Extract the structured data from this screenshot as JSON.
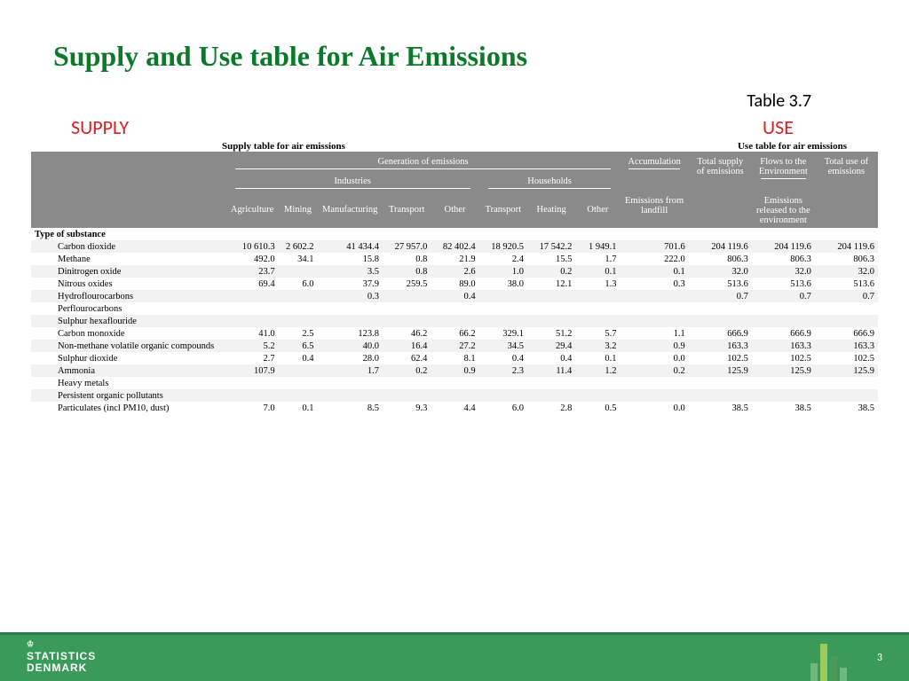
{
  "title": "Supply and Use table for Air Emissions",
  "table_label": "Table 3.7",
  "section_supply": "SUPPLY",
  "section_use": "USE",
  "caption_supply": "Supply table for air emissions",
  "caption_use": "Use table for air emissions",
  "head": {
    "gen": "Generation of emissions",
    "accum": "Accumulation",
    "total_supply": "Total supply of emissions",
    "flows": "Flows to the Environment",
    "total_use": "Total use of emissions",
    "industries": "Industries",
    "households": "Households",
    "landfill": "Emissions from landfill",
    "released": "Emissions released to the environment",
    "cols": {
      "agri": "Agriculture",
      "mining": "Mining",
      "manuf": "Manufacturing",
      "trans": "Transport",
      "other": "Other",
      "htrans": "Transport",
      "heat": "Heating",
      "hother": "Other"
    }
  },
  "rowhead": "Type of substance",
  "rows": [
    {
      "n": "Carbon dioxide",
      "v": [
        "10 610.3",
        "2 602.2",
        "41 434.4",
        "27 957.0",
        "82 402.4",
        "18 920.5",
        "17 542.2",
        "1 949.1",
        "701.6",
        "204 119.6",
        "204 119.6",
        "204 119.6"
      ]
    },
    {
      "n": "Methane",
      "v": [
        "492.0",
        "34.1",
        "15.8",
        "0.8",
        "21.9",
        "2.4",
        "15.5",
        "1.7",
        "222.0",
        "806.3",
        "806.3",
        "806.3"
      ]
    },
    {
      "n": "Dinitrogen oxide",
      "v": [
        "23.7",
        "",
        "3.5",
        "0.8",
        "2.6",
        "1.0",
        "0.2",
        "0.1",
        "0.1",
        "32.0",
        "32.0",
        "32.0"
      ]
    },
    {
      "n": "Nitrous oxides",
      "v": [
        "69.4",
        "6.0",
        "37.9",
        "259.5",
        "89.0",
        "38.0",
        "12.1",
        "1.3",
        "0.3",
        "513.6",
        "513.6",
        "513.6"
      ]
    },
    {
      "n": "Hydroflourocarbons",
      "v": [
        "",
        "",
        "0.3",
        "",
        "0.4",
        "",
        "",
        "",
        "",
        "0.7",
        "0.7",
        "0.7"
      ]
    },
    {
      "n": "Perflourocarbons",
      "v": [
        "",
        "",
        "",
        "",
        "",
        "",
        "",
        "",
        "",
        "",
        "",
        ""
      ]
    },
    {
      "n": "Sulphur hexaflouride",
      "v": [
        "",
        "",
        "",
        "",
        "",
        "",
        "",
        "",
        "",
        "",
        "",
        ""
      ]
    },
    {
      "n": "Carbon monoxide",
      "v": [
        "41.0",
        "2.5",
        "123.8",
        "46.2",
        "66.2",
        "329.1",
        "51.2",
        "5.7",
        "1.1",
        "666.9",
        "666.9",
        "666.9"
      ]
    },
    {
      "n": "Non-methane volatile organic compounds",
      "v": [
        "5.2",
        "6.5",
        "40.0",
        "16.4",
        "27.2",
        "34.5",
        "29.4",
        "3.2",
        "0.9",
        "163.3",
        "163.3",
        "163.3"
      ]
    },
    {
      "n": "Sulphur dioxide",
      "v": [
        "2.7",
        "0.4",
        "28.0",
        "62.4",
        "8.1",
        "0.4",
        "0.4",
        "0.1",
        "0.0",
        "102.5",
        "102.5",
        "102.5"
      ]
    },
    {
      "n": "Ammonia",
      "v": [
        "107.9",
        "",
        "1.7",
        "0.2",
        "0.9",
        "2.3",
        "11.4",
        "1.2",
        "0.2",
        "125.9",
        "125.9",
        "125.9"
      ]
    },
    {
      "n": "Heavy metals",
      "v": [
        "",
        "",
        "",
        "",
        "",
        "",
        "",
        "",
        "",
        "",
        "",
        ""
      ]
    },
    {
      "n": "Persistent organic pollutants",
      "v": [
        "",
        "",
        "",
        "",
        "",
        "",
        "",
        "",
        "",
        "",
        "",
        ""
      ]
    },
    {
      "n": "Particulates (incl PM10, dust)",
      "v": [
        "7.0",
        "0.1",
        "8.5",
        "9.3",
        "4.4",
        "6.0",
        "2.8",
        "0.5",
        "0.0",
        "38.5",
        "38.5",
        "38.5"
      ]
    }
  ],
  "footer": {
    "org1": "STATISTICS",
    "org2": "DENMARK",
    "page": "3"
  },
  "colors": {
    "title": "#0a7a2a",
    "accent": "#d92020",
    "header_bg": "#8a8a8a",
    "footer_bg": "#3a9a5a"
  }
}
